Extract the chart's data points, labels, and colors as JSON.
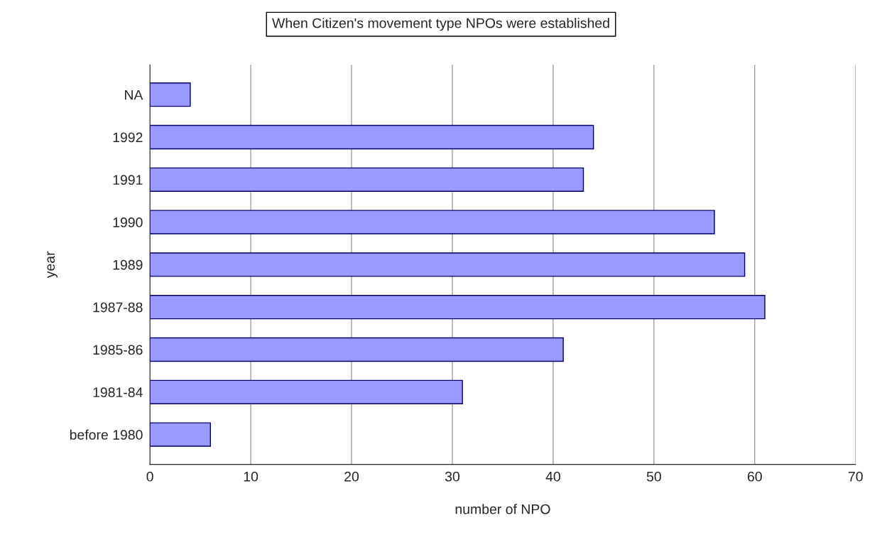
{
  "chart_data": {
    "type": "bar",
    "orientation": "horizontal",
    "title": "When Citizen's movement type NPOs were established",
    "categories": [
      "NA",
      "1992",
      "1991",
      "1990",
      "1989",
      "1987-88",
      "1985-86",
      "1981-84",
      "before 1980"
    ],
    "values": [
      4,
      44,
      43,
      56,
      59,
      61,
      41,
      31,
      6
    ],
    "color": "#9999ff",
    "xlabel": "number of NPO",
    "ylabel": "year",
    "xlim": [
      0,
      70
    ],
    "xticks": [
      0,
      10,
      20,
      30,
      40,
      50,
      60,
      70
    ],
    "grid": "x"
  }
}
